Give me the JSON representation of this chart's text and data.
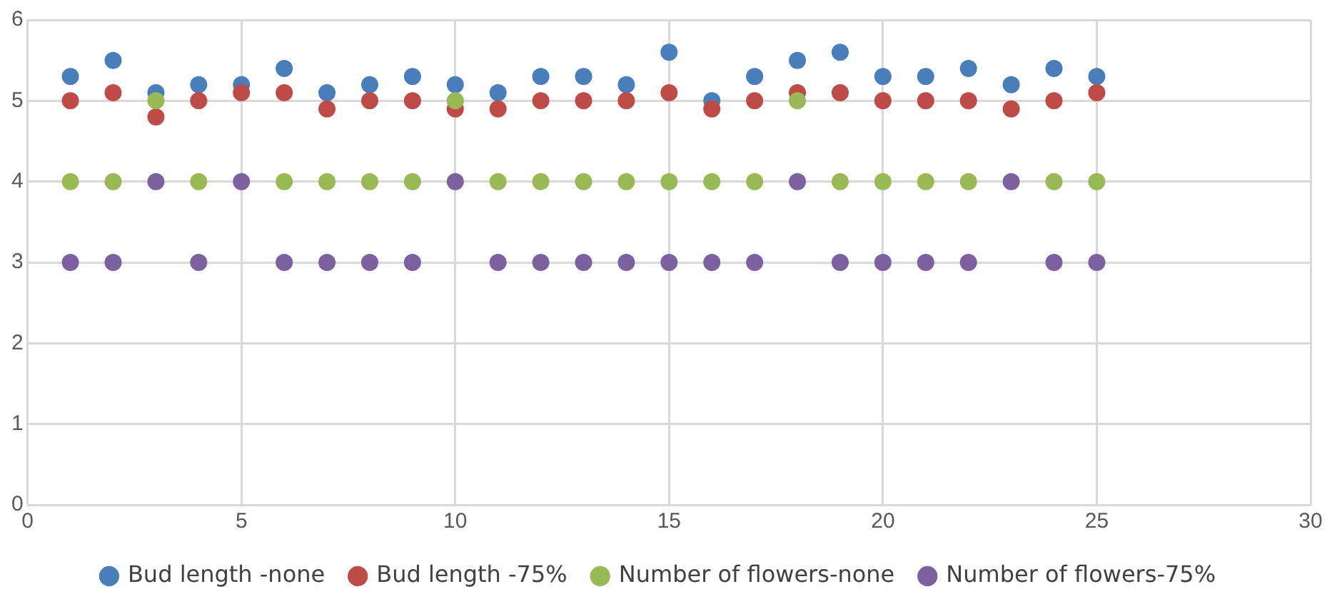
{
  "chart_data": {
    "type": "scatter",
    "x": [
      1,
      2,
      3,
      4,
      5,
      6,
      7,
      8,
      9,
      10,
      11,
      12,
      13,
      14,
      15,
      16,
      17,
      18,
      19,
      20,
      21,
      22,
      23,
      24,
      25
    ],
    "series": [
      {
        "name": "Bud length -none",
        "color": "#4a7ebb",
        "values": [
          5.3,
          5.5,
          5.1,
          5.2,
          5.2,
          5.4,
          5.1,
          5.2,
          5.3,
          5.2,
          5.1,
          5.3,
          5.3,
          5.2,
          5.6,
          5.0,
          5.3,
          5.5,
          5.6,
          5.3,
          5.3,
          5.4,
          5.2,
          5.4,
          5.3
        ]
      },
      {
        "name": "Bud length -75%",
        "color": "#be4b48",
        "values": [
          5.0,
          5.1,
          4.8,
          5.0,
          5.1,
          5.1,
          4.9,
          5.0,
          5.0,
          4.9,
          4.9,
          5.0,
          5.0,
          5.0,
          5.1,
          4.9,
          5.0,
          5.1,
          5.1,
          5.0,
          5.0,
          5.0,
          4.9,
          5.0,
          5.1
        ]
      },
      {
        "name": "Number of flowers-none",
        "color": "#98b954",
        "values": [
          4,
          4,
          5,
          4,
          null,
          4,
          4,
          4,
          4,
          5,
          4,
          4,
          4,
          4,
          4,
          4,
          4,
          5,
          4,
          4,
          4,
          4,
          null,
          4,
          4
        ]
      },
      {
        "name": "Number of flowers-75%",
        "color": "#7d60a0",
        "values": [
          3,
          3,
          4,
          3,
          4,
          3,
          3,
          3,
          3,
          4,
          3,
          3,
          3,
          3,
          3,
          3,
          3,
          4,
          3,
          3,
          3,
          3,
          4,
          3,
          3
        ]
      }
    ],
    "xlim": [
      0,
      30
    ],
    "xticks": [
      0,
      5,
      10,
      15,
      20,
      25,
      30
    ],
    "ylim": [
      0,
      6
    ],
    "yticks": [
      0,
      1,
      2,
      3,
      4,
      5,
      6
    ],
    "grid": true,
    "legend": "bottom",
    "marker": "circle"
  }
}
